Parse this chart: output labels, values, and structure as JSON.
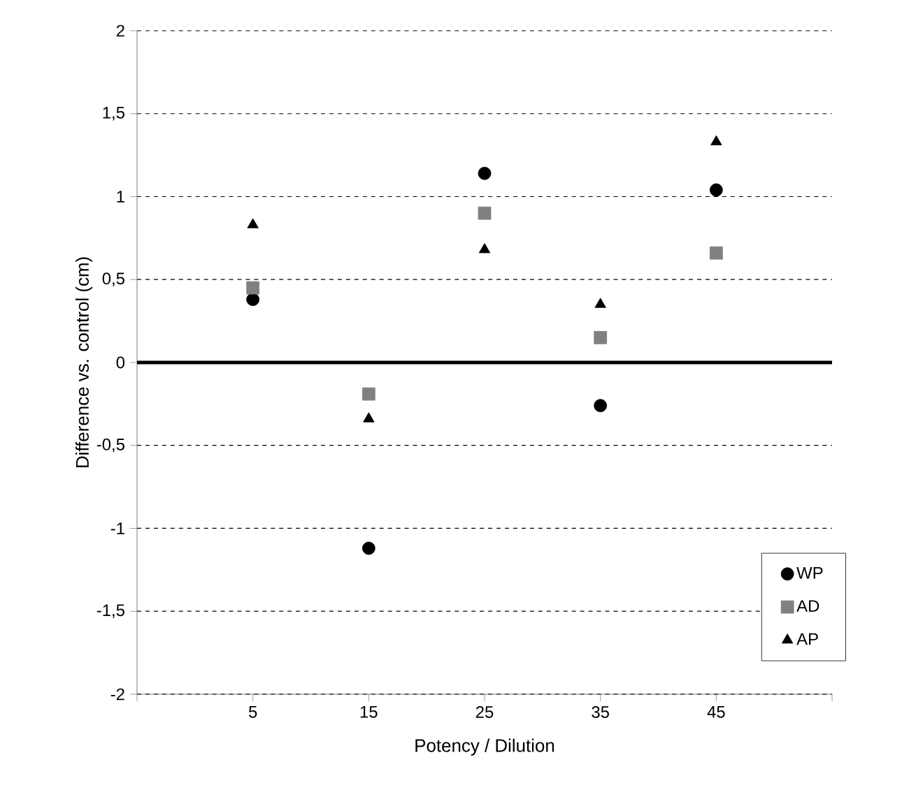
{
  "chart_data": {
    "type": "scatter",
    "xlabel": "Potency / Dilution",
    "ylabel": "Difference vs. control (cm)",
    "x": [
      5,
      15,
      25,
      35,
      45
    ],
    "series": [
      {
        "name": "WP",
        "color": "#000000",
        "marker": "circle",
        "values": [
          0.38,
          -1.12,
          1.14,
          -0.26,
          1.04
        ]
      },
      {
        "name": "AD",
        "color": "#808080",
        "marker": "square",
        "values": [
          0.45,
          -0.19,
          0.9,
          0.15,
          0.66
        ]
      },
      {
        "name": "AP",
        "color": "#000000",
        "marker": "triangle",
        "values": [
          0.83,
          -0.34,
          0.68,
          0.35,
          1.33
        ]
      }
    ],
    "xlim": [
      -5,
      55
    ],
    "xticks": [
      {
        "value": -5,
        "label": null
      },
      5,
      15,
      25,
      35,
      45,
      {
        "value": 55,
        "label": null
      }
    ],
    "ylim": [
      -2,
      2
    ],
    "yticks": [
      {
        "value": -2,
        "label": "-2"
      },
      {
        "value": -1.5,
        "label": "-1,5"
      },
      {
        "value": -1,
        "label": "-1"
      },
      {
        "value": -0.5,
        "label": "-0,5"
      },
      0,
      {
        "value": 0.5,
        "label": "0,5"
      },
      1,
      {
        "value": 1.5,
        "label": "1,5"
      },
      2
    ],
    "grid": "y",
    "legend": "bottom right",
    "ref_lines": [
      {
        "axis": "y",
        "value": 0,
        "color": "#000000"
      }
    ]
  }
}
